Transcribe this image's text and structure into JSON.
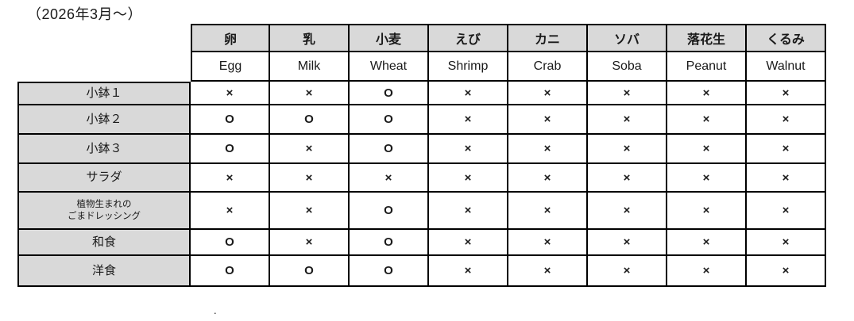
{
  "chart_data": {
    "type": "table",
    "title": "（2026年3月～）",
    "columns": [
      {
        "ja": "卵",
        "en": "Egg"
      },
      {
        "ja": "乳",
        "en": "Milk"
      },
      {
        "ja": "小麦",
        "en": "Wheat"
      },
      {
        "ja": "えび",
        "en": "Shrimp"
      },
      {
        "ja": "カニ",
        "en": "Crab"
      },
      {
        "ja": "ソバ",
        "en": "Soba"
      },
      {
        "ja": "落花生",
        "en": "Peanut"
      },
      {
        "ja": "くるみ",
        "en": "Walnut"
      }
    ],
    "rows": [
      {
        "label": "小鉢１",
        "marks": [
          "×",
          "×",
          "O",
          "×",
          "×",
          "×",
          "×",
          "×"
        ]
      },
      {
        "label": "小鉢２",
        "marks": [
          "O",
          "O",
          "O",
          "×",
          "×",
          "×",
          "×",
          "×"
        ]
      },
      {
        "label": "小鉢３",
        "marks": [
          "O",
          "×",
          "O",
          "×",
          "×",
          "×",
          "×",
          "×"
        ]
      },
      {
        "label": "サラダ",
        "marks": [
          "×",
          "×",
          "×",
          "×",
          "×",
          "×",
          "×",
          "×"
        ]
      },
      {
        "label": "植物生まれの\nごまドレッシング",
        "marks": [
          "×",
          "×",
          "O",
          "×",
          "×",
          "×",
          "×",
          "×"
        ]
      },
      {
        "label": "和食",
        "marks": [
          "O",
          "×",
          "O",
          "×",
          "×",
          "×",
          "×",
          "×"
        ]
      },
      {
        "label": "洋食",
        "marks": [
          "O",
          "O",
          "O",
          "×",
          "×",
          "×",
          "×",
          "×"
        ]
      }
    ],
    "layout": {
      "header_bg": "#d9d9d9",
      "row_label_bg": "#d9d9d9",
      "border_color": "#000000"
    }
  },
  "footnote_dot": "."
}
